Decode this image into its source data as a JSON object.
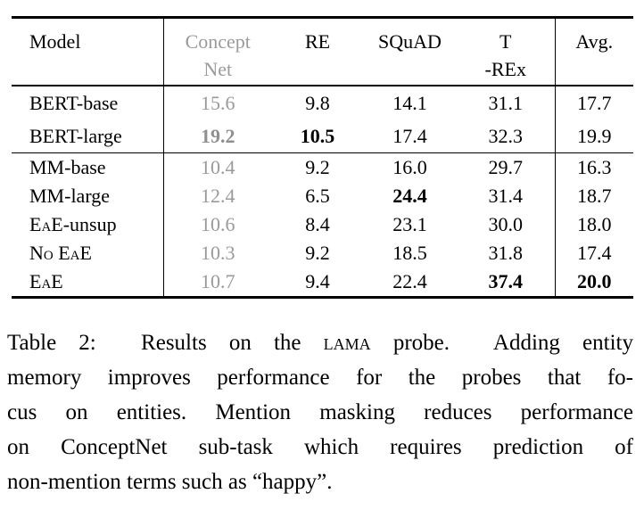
{
  "colors": {
    "background": "#ffffff",
    "text": "#000000",
    "muted_gray": "#9a9a9a",
    "muted_gray_bold": "#8f8f8f",
    "rule": "#000000"
  },
  "table": {
    "header": {
      "model": "Model",
      "conceptnet_line1": "Concept",
      "conceptnet_line2": "Net",
      "re": "RE",
      "squad": "SQuAD",
      "trex_line1": "T",
      "trex_line2": "-REx",
      "avg": "Avg."
    },
    "rows": [
      {
        "model_sc": "",
        "model_text": "BERT-base",
        "conceptnet": "15.6",
        "re": "9.8",
        "squad": "14.1",
        "trex": "31.1",
        "avg": "17.7"
      },
      {
        "model_sc": "",
        "model_text": "BERT-large",
        "conceptnet": "19.2",
        "re": "10.5",
        "squad": "17.4",
        "trex": "32.3",
        "avg": "19.9"
      },
      {
        "model_sc": "",
        "model_text": "MM-base",
        "conceptnet": "10.4",
        "re": "9.2",
        "squad": "16.0",
        "trex": "29.7",
        "avg": "16.3"
      },
      {
        "model_sc": "",
        "model_text": "MM-large",
        "conceptnet": "12.4",
        "re": "6.5",
        "squad": "24.4",
        "trex": "31.4",
        "avg": "18.7"
      },
      {
        "model_sc": "EaE",
        "model_text": "-unsup",
        "conceptnet": "10.6",
        "re": "8.4",
        "squad": "23.1",
        "trex": "30.0",
        "avg": "18.0"
      },
      {
        "model_sc": "No EaE",
        "model_text": "",
        "conceptnet": "10.3",
        "re": "9.2",
        "squad": "18.5",
        "trex": "31.8",
        "avg": "17.4"
      },
      {
        "model_sc": "EaE",
        "model_text": "",
        "conceptnet": "10.7",
        "re": "9.4",
        "squad": "22.4",
        "trex": "37.4",
        "avg": "20.0"
      }
    ]
  },
  "caption": {
    "label": "Table 2:",
    "line1_pre": "Table 2:  Results on the ",
    "line1_sc": "lama",
    "line1_post": " probe.  Adding entity",
    "line2": "memory improves performance for the probes that fo-",
    "line3": "cus on entities. Mention masking reduces performance",
    "line4": "on ConceptNet sub-task which requires prediction of",
    "line5": "non-mention terms such as “happy”."
  }
}
